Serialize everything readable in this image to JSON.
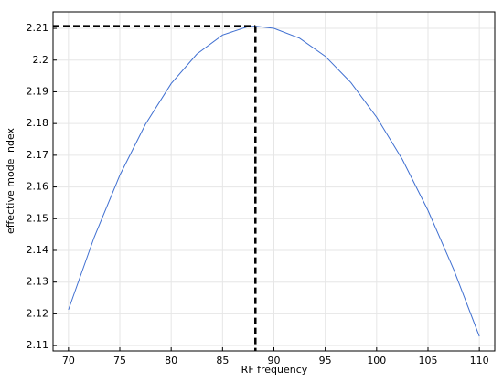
{
  "chart_data": {
    "type": "line",
    "x_label": "RF frequency",
    "y_label": "effective mode index",
    "series": [
      {
        "color": "#3f6fd1",
        "x": [
          70,
          72.5,
          75,
          77.5,
          80,
          82.5,
          85,
          87.5,
          88.2,
          90,
          92.5,
          95,
          97.5,
          100,
          102.5,
          105,
          107.5,
          110
        ],
        "values": [
          2.1213,
          2.1441,
          2.1637,
          2.1798,
          2.1926,
          2.2019,
          2.2079,
          2.2106,
          2.2107,
          2.21,
          2.2069,
          2.2012,
          2.1929,
          2.182,
          2.1687,
          2.1526,
          2.134,
          2.1129
        ]
      }
    ],
    "marker": {
      "x": 88.2,
      "y": 2.2107,
      "color": "#000000"
    },
    "xlim": [
      68.5,
      111.5
    ],
    "xticks": [
      70,
      75,
      80,
      85,
      90,
      95,
      100,
      105,
      110
    ],
    "ylim": [
      2.1083,
      2.2152
    ],
    "yticks": [
      2.11,
      2.12,
      2.13,
      2.14,
      2.15,
      2.16,
      2.17,
      2.18,
      2.19,
      2.2,
      2.21
    ],
    "grid": true
  }
}
